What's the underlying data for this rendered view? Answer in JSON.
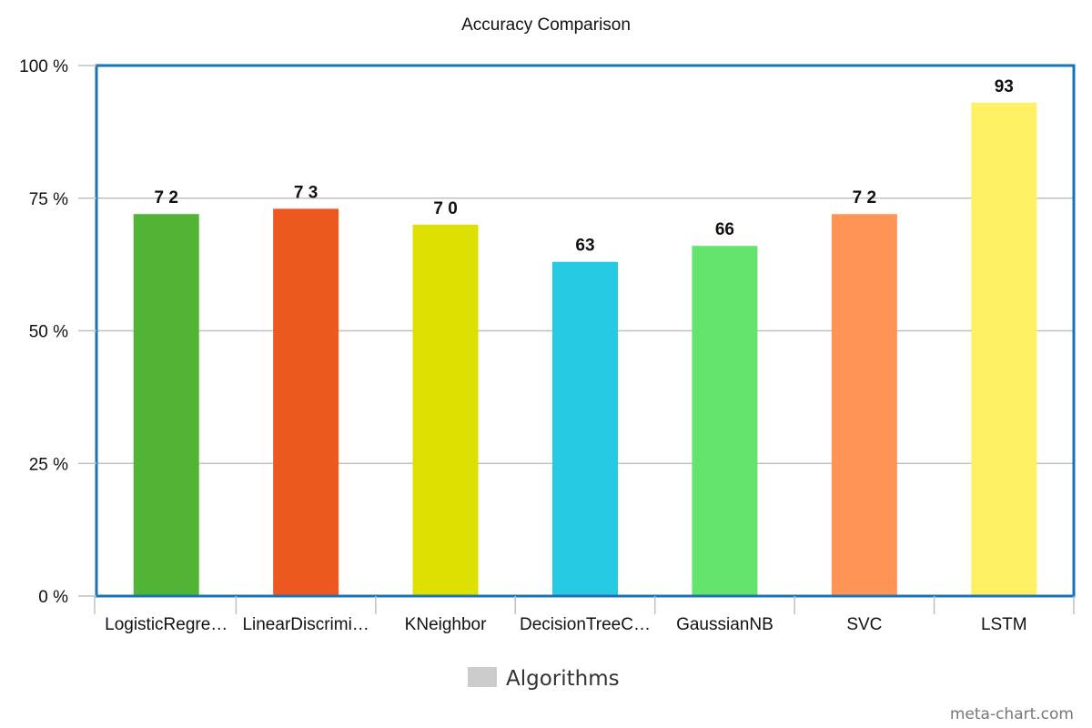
{
  "chart_data": {
    "type": "bar",
    "title": "Accuracy Comparison",
    "xlabel": "",
    "ylabel": "",
    "categories": [
      "LogisticRegre…",
      "LinearDiscrimi…",
      "KNeighbor",
      "DecisionTreeC…",
      "GaussianNB",
      "SVC",
      "LSTM"
    ],
    "series": [
      {
        "name": "Algorithms",
        "values": [
          72,
          73,
          70,
          63,
          66,
          72,
          93
        ],
        "data_labels": [
          "7 2",
          "7 3",
          "7 0",
          "63",
          "66",
          "7 2",
          "93"
        ],
        "colors": [
          "#52b435",
          "#ec581f",
          "#dde001",
          "#26cbe3",
          "#64e36d",
          "#ff9455",
          "#fff163"
        ]
      }
    ],
    "ylim": [
      0,
      100
    ],
    "yticks": [
      0,
      25,
      50,
      75,
      100
    ],
    "ytick_labels": [
      "0 %",
      "25 %",
      "50 %",
      "75 %",
      "100 %"
    ],
    "grid": true,
    "legend": {
      "position": "bottom",
      "label": "Algorithms",
      "swatch_color": "#cccccc"
    },
    "plot_border_color": "#1a73b5",
    "grid_color": "#c0c0c0"
  },
  "watermark": "meta-chart.com"
}
